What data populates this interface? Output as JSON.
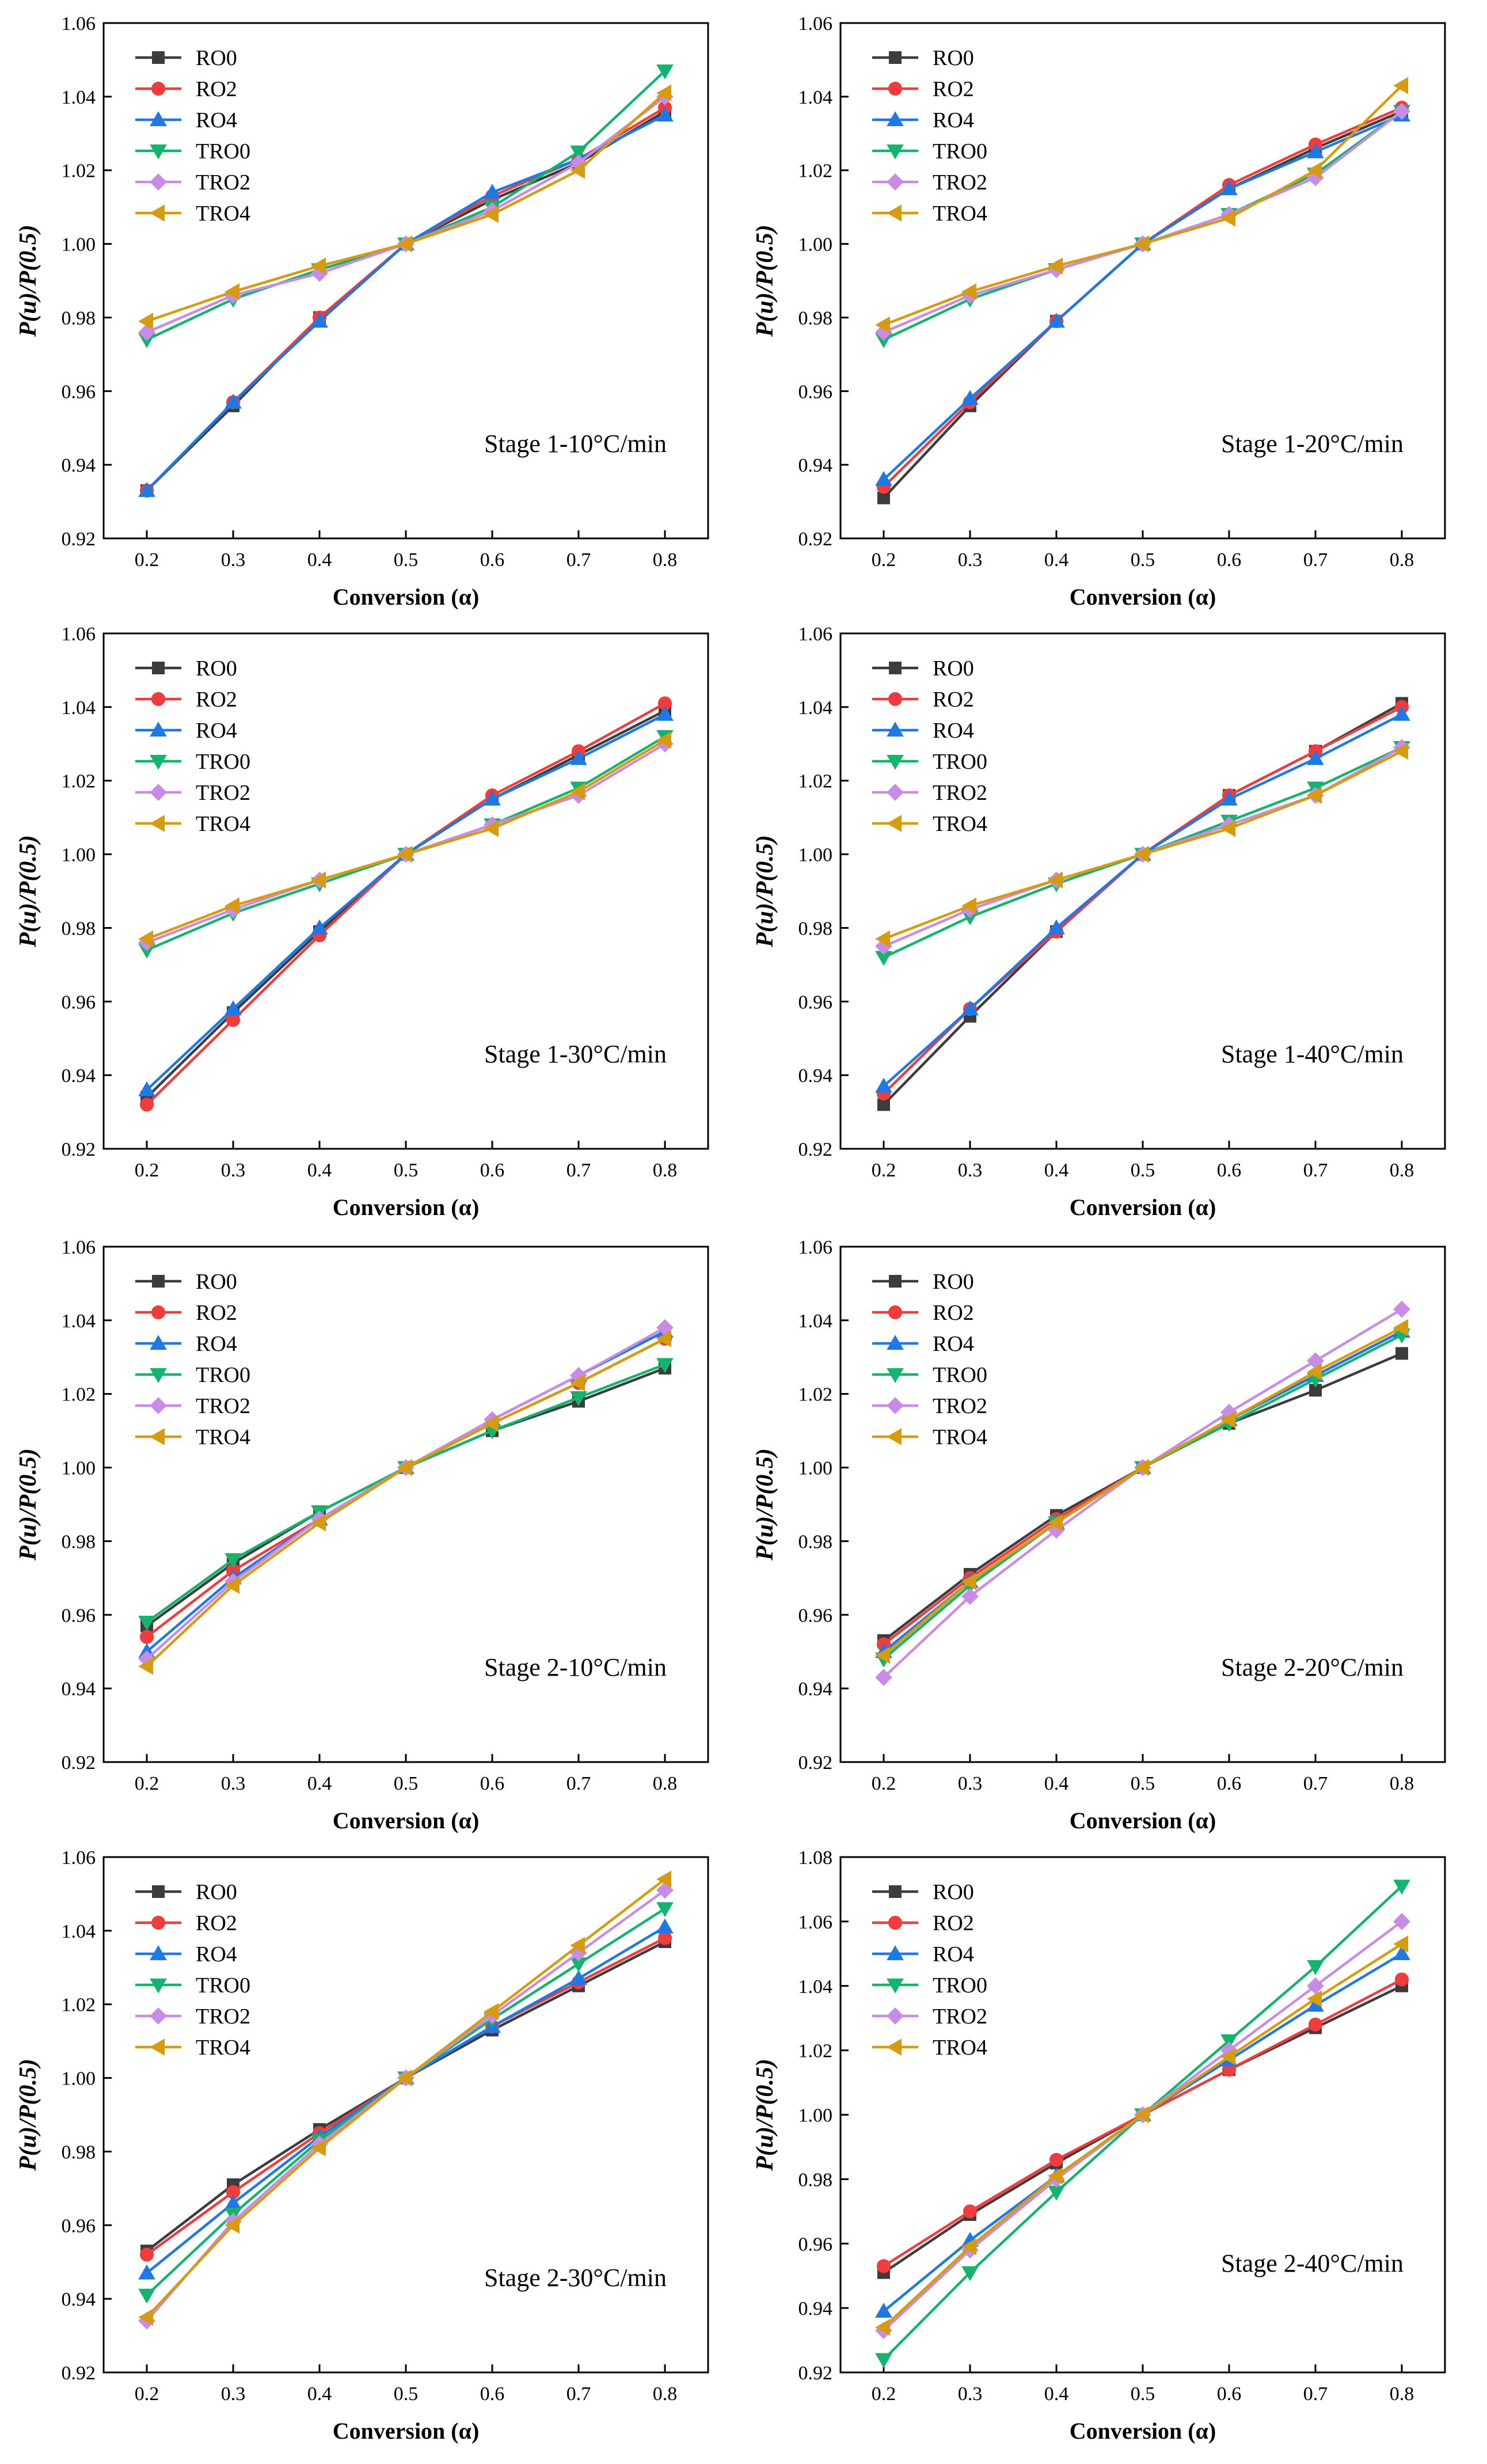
{
  "figure": {
    "series_names": [
      "RO0",
      "RO2",
      "RO4",
      "TRO0",
      "TRO2",
      "TRO4"
    ],
    "series_colors": [
      "#3c3c3c",
      "#f03c3c",
      "#1e78e6",
      "#14b46e",
      "#c88ce6",
      "#d79b0f"
    ],
    "series_markers": [
      "square",
      "circle",
      "triangle-up",
      "triangle-down",
      "diamond",
      "triangle-left"
    ]
  },
  "chart_data": [
    {
      "type": "line",
      "annotation": "Stage 1-10°C/min",
      "xlabel": "Conversion (α)",
      "ylabel": "P(u)/P(0.5)",
      "x": [
        0.2,
        0.3,
        0.4,
        0.5,
        0.6,
        0.7,
        0.8
      ],
      "x_ticks": [
        "0.2",
        "0.3",
        "0.4",
        "0.5",
        "0.6",
        "0.7",
        "0.8"
      ],
      "ylim": [
        0.92,
        1.06
      ],
      "y_ticks": [
        "0.92",
        "0.94",
        "0.96",
        "0.98",
        "1.00",
        "1.02",
        "1.04",
        "1.06"
      ],
      "legend": "top-left",
      "series": [
        {
          "name": "RO0",
          "values": [
            0.933,
            0.956,
            0.98,
            1.0,
            1.012,
            1.022,
            1.036
          ]
        },
        {
          "name": "RO2",
          "values": [
            0.933,
            0.957,
            0.98,
            1.0,
            1.013,
            1.023,
            1.037
          ]
        },
        {
          "name": "RO4",
          "values": [
            0.933,
            0.957,
            0.979,
            1.0,
            1.014,
            1.023,
            1.035
          ]
        },
        {
          "name": "TRO0",
          "values": [
            0.974,
            0.985,
            0.993,
            1.0,
            1.01,
            1.025,
            1.047
          ]
        },
        {
          "name": "TRO2",
          "values": [
            0.976,
            0.986,
            0.992,
            1.0,
            1.009,
            1.022,
            1.04
          ]
        },
        {
          "name": "TRO4",
          "values": [
            0.979,
            0.987,
            0.994,
            1.0,
            1.008,
            1.02,
            1.041
          ]
        }
      ]
    },
    {
      "type": "line",
      "annotation": "Stage 1-20°C/min",
      "xlabel": "Conversion (α)",
      "ylabel": "P(u)/P(0.5)",
      "x": [
        0.2,
        0.3,
        0.4,
        0.5,
        0.6,
        0.7,
        0.8
      ],
      "x_ticks": [
        "0.2",
        "0.3",
        "0.4",
        "0.5",
        "0.6",
        "0.7",
        "0.8"
      ],
      "ylim": [
        0.92,
        1.06
      ],
      "y_ticks": [
        "0.92",
        "0.94",
        "0.96",
        "0.98",
        "1.00",
        "1.02",
        "1.04",
        "1.06"
      ],
      "legend": "top-left",
      "series": [
        {
          "name": "RO0",
          "values": [
            0.931,
            0.956,
            0.979,
            1.0,
            1.015,
            1.026,
            1.036
          ]
        },
        {
          "name": "RO2",
          "values": [
            0.934,
            0.957,
            0.979,
            1.0,
            1.016,
            1.027,
            1.037
          ]
        },
        {
          "name": "RO4",
          "values": [
            0.936,
            0.958,
            0.979,
            1.0,
            1.015,
            1.025,
            1.035
          ]
        },
        {
          "name": "TRO0",
          "values": [
            0.974,
            0.985,
            0.993,
            1.0,
            1.008,
            1.019,
            1.036
          ]
        },
        {
          "name": "TRO2",
          "values": [
            0.976,
            0.986,
            0.993,
            1.0,
            1.008,
            1.018,
            1.036
          ]
        },
        {
          "name": "TRO4",
          "values": [
            0.978,
            0.987,
            0.994,
            1.0,
            1.007,
            1.02,
            1.043
          ]
        }
      ]
    },
    {
      "type": "line",
      "annotation": "Stage 1-30°C/min",
      "xlabel": "Conversion (α)",
      "ylabel": "P(u)/P(0.5)",
      "x": [
        0.2,
        0.3,
        0.4,
        0.5,
        0.6,
        0.7,
        0.8
      ],
      "x_ticks": [
        "0.2",
        "0.3",
        "0.4",
        "0.5",
        "0.6",
        "0.7",
        "0.8"
      ],
      "ylim": [
        0.92,
        1.06
      ],
      "y_ticks": [
        "0.92",
        "0.94",
        "0.96",
        "0.98",
        "1.00",
        "1.02",
        "1.04",
        "1.06"
      ],
      "legend": "top-left",
      "series": [
        {
          "name": "RO0",
          "values": [
            0.934,
            0.957,
            0.979,
            1.0,
            1.015,
            1.027,
            1.039
          ]
        },
        {
          "name": "RO2",
          "values": [
            0.932,
            0.955,
            0.978,
            1.0,
            1.016,
            1.028,
            1.041
          ]
        },
        {
          "name": "RO4",
          "values": [
            0.936,
            0.958,
            0.98,
            1.0,
            1.015,
            1.026,
            1.038
          ]
        },
        {
          "name": "TRO0",
          "values": [
            0.974,
            0.984,
            0.992,
            1.0,
            1.008,
            1.018,
            1.032
          ]
        },
        {
          "name": "TRO2",
          "values": [
            0.976,
            0.985,
            0.993,
            1.0,
            1.008,
            1.016,
            1.03
          ]
        },
        {
          "name": "TRO4",
          "values": [
            0.977,
            0.986,
            0.993,
            1.0,
            1.007,
            1.017,
            1.031
          ]
        }
      ]
    },
    {
      "type": "line",
      "annotation": "Stage 1-40°C/min",
      "xlabel": "Conversion (α)",
      "ylabel": "P(u)/P(0.5)",
      "x": [
        0.2,
        0.3,
        0.4,
        0.5,
        0.6,
        0.7,
        0.8
      ],
      "x_ticks": [
        "0.2",
        "0.3",
        "0.4",
        "0.5",
        "0.6",
        "0.7",
        "0.8"
      ],
      "ylim": [
        0.92,
        1.06
      ],
      "y_ticks": [
        "0.92",
        "0.94",
        "0.96",
        "0.98",
        "1.00",
        "1.02",
        "1.04",
        "1.06"
      ],
      "legend": "top-left",
      "series": [
        {
          "name": "RO0",
          "values": [
            0.932,
            0.956,
            0.979,
            1.0,
            1.016,
            1.028,
            1.041
          ]
        },
        {
          "name": "RO2",
          "values": [
            0.935,
            0.958,
            0.979,
            1.0,
            1.016,
            1.028,
            1.04
          ]
        },
        {
          "name": "RO4",
          "values": [
            0.937,
            0.958,
            0.98,
            1.0,
            1.015,
            1.026,
            1.038
          ]
        },
        {
          "name": "TRO0",
          "values": [
            0.972,
            0.983,
            0.992,
            1.0,
            1.009,
            1.018,
            1.029
          ]
        },
        {
          "name": "TRO2",
          "values": [
            0.975,
            0.985,
            0.993,
            1.0,
            1.008,
            1.016,
            1.029
          ]
        },
        {
          "name": "TRO4",
          "values": [
            0.977,
            0.986,
            0.993,
            1.0,
            1.007,
            1.016,
            1.028
          ]
        }
      ]
    },
    {
      "type": "line",
      "annotation": "Stage 2-10°C/min",
      "xlabel": "Conversion (α)",
      "ylabel": "P(u)/P(0.5)",
      "x": [
        0.2,
        0.3,
        0.4,
        0.5,
        0.6,
        0.7,
        0.8
      ],
      "x_ticks": [
        "0.2",
        "0.3",
        "0.4",
        "0.5",
        "0.6",
        "0.7",
        "0.8"
      ],
      "ylim": [
        0.92,
        1.06
      ],
      "y_ticks": [
        "0.92",
        "0.94",
        "0.96",
        "0.98",
        "1.00",
        "1.02",
        "1.04",
        "1.06"
      ],
      "legend": "top-left",
      "series": [
        {
          "name": "RO0",
          "values": [
            0.957,
            0.974,
            0.988,
            1.0,
            1.01,
            1.018,
            1.027
          ]
        },
        {
          "name": "RO2",
          "values": [
            0.954,
            0.972,
            0.986,
            1.0,
            1.012,
            1.023,
            1.035
          ]
        },
        {
          "name": "RO4",
          "values": [
            0.95,
            0.97,
            0.986,
            1.0,
            1.013,
            1.025,
            1.037
          ]
        },
        {
          "name": "TRO0",
          "values": [
            0.958,
            0.975,
            0.988,
            1.0,
            1.01,
            1.019,
            1.028
          ]
        },
        {
          "name": "TRO2",
          "values": [
            0.948,
            0.969,
            0.986,
            1.0,
            1.013,
            1.025,
            1.038
          ]
        },
        {
          "name": "TRO4",
          "values": [
            0.946,
            0.968,
            0.985,
            1.0,
            1.012,
            1.023,
            1.035
          ]
        }
      ]
    },
    {
      "type": "line",
      "annotation": "Stage 2-20°C/min",
      "xlabel": "Conversion (α)",
      "ylabel": "P(u)/P(0.5)",
      "x": [
        0.2,
        0.3,
        0.4,
        0.5,
        0.6,
        0.7,
        0.8
      ],
      "x_ticks": [
        "0.2",
        "0.3",
        "0.4",
        "0.5",
        "0.6",
        "0.7",
        "0.8"
      ],
      "ylim": [
        0.92,
        1.06
      ],
      "y_ticks": [
        "0.92",
        "0.94",
        "0.96",
        "0.98",
        "1.00",
        "1.02",
        "1.04",
        "1.06"
      ],
      "legend": "top-left",
      "series": [
        {
          "name": "RO0",
          "values": [
            0.953,
            0.971,
            0.987,
            1.0,
            1.012,
            1.021,
            1.031
          ]
        },
        {
          "name": "RO2",
          "values": [
            0.952,
            0.97,
            0.986,
            1.0,
            1.013,
            1.025,
            1.037
          ]
        },
        {
          "name": "RO4",
          "values": [
            0.95,
            0.969,
            0.985,
            1.0,
            1.013,
            1.025,
            1.037
          ]
        },
        {
          "name": "TRO0",
          "values": [
            0.948,
            0.968,
            0.985,
            1.0,
            1.012,
            1.024,
            1.036
          ]
        },
        {
          "name": "TRO2",
          "values": [
            0.943,
            0.965,
            0.983,
            1.0,
            1.015,
            1.029,
            1.043
          ]
        },
        {
          "name": "TRO4",
          "values": [
            0.949,
            0.969,
            0.985,
            1.0,
            1.013,
            1.026,
            1.038
          ]
        }
      ]
    },
    {
      "type": "line",
      "annotation": "Stage 2-30°C/min",
      "xlabel": "Conversion (α)",
      "ylabel": "P(u)/P(0.5)",
      "x": [
        0.2,
        0.3,
        0.4,
        0.5,
        0.6,
        0.7,
        0.8
      ],
      "x_ticks": [
        "0.2",
        "0.3",
        "0.4",
        "0.5",
        "0.6",
        "0.7",
        "0.8"
      ],
      "ylim": [
        0.92,
        1.06
      ],
      "y_ticks": [
        "0.92",
        "0.94",
        "0.96",
        "0.98",
        "1.00",
        "1.02",
        "1.04",
        "1.06"
      ],
      "legend": "top-left",
      "series": [
        {
          "name": "RO0",
          "values": [
            0.953,
            0.971,
            0.986,
            1.0,
            1.013,
            1.025,
            1.037
          ]
        },
        {
          "name": "RO2",
          "values": [
            0.952,
            0.969,
            0.985,
            1.0,
            1.014,
            1.026,
            1.038
          ]
        },
        {
          "name": "RO4",
          "values": [
            0.947,
            0.966,
            0.984,
            1.0,
            1.014,
            1.027,
            1.041
          ]
        },
        {
          "name": "TRO0",
          "values": [
            0.941,
            0.963,
            0.983,
            1.0,
            1.016,
            1.031,
            1.046
          ]
        },
        {
          "name": "TRO2",
          "values": [
            0.934,
            0.961,
            0.982,
            1.0,
            1.017,
            1.034,
            1.051
          ]
        },
        {
          "name": "TRO4",
          "values": [
            0.935,
            0.96,
            0.981,
            1.0,
            1.018,
            1.036,
            1.054
          ]
        }
      ]
    },
    {
      "type": "line",
      "annotation": "Stage 2-40°C/min",
      "xlabel": "Conversion (α)",
      "ylabel": "P(u)/P(0.5)",
      "x": [
        0.2,
        0.3,
        0.4,
        0.5,
        0.6,
        0.7,
        0.8
      ],
      "x_ticks": [
        "0.2",
        "0.3",
        "0.4",
        "0.5",
        "0.6",
        "0.7",
        "0.8"
      ],
      "ylim": [
        0.92,
        1.08
      ],
      "y_ticks": [
        "0.92",
        "0.94",
        "0.96",
        "0.98",
        "1.00",
        "1.02",
        "1.04",
        "1.06",
        "1.08"
      ],
      "legend": "top-left",
      "series": [
        {
          "name": "RO0",
          "values": [
            0.951,
            0.969,
            0.985,
            1.0,
            1.014,
            1.027,
            1.04
          ]
        },
        {
          "name": "RO2",
          "values": [
            0.953,
            0.97,
            0.986,
            1.0,
            1.014,
            1.028,
            1.042
          ]
        },
        {
          "name": "RO4",
          "values": [
            0.939,
            0.961,
            0.981,
            1.0,
            1.017,
            1.034,
            1.05
          ]
        },
        {
          "name": "TRO0",
          "values": [
            0.924,
            0.951,
            0.976,
            1.0,
            1.023,
            1.046,
            1.071
          ]
        },
        {
          "name": "TRO2",
          "values": [
            0.933,
            0.958,
            0.98,
            1.0,
            1.02,
            1.04,
            1.06
          ]
        },
        {
          "name": "TRO4",
          "values": [
            0.934,
            0.959,
            0.981,
            1.0,
            1.018,
            1.036,
            1.053
          ]
        }
      ]
    }
  ]
}
